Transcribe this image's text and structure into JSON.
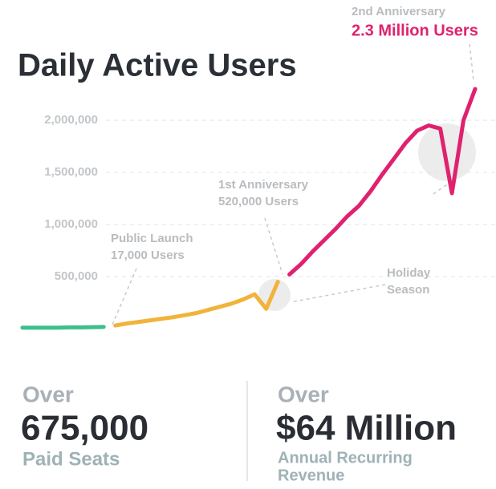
{
  "chart_data": {
    "type": "line",
    "title": "Daily Active Users",
    "categories": [
      null,
      null,
      null,
      null,
      null,
      null,
      null,
      null,
      null,
      null,
      null,
      null,
      null,
      null,
      null,
      null,
      null,
      null,
      null,
      null,
      null,
      null,
      null,
      null,
      null,
      null,
      null,
      null,
      null,
      null,
      null,
      null,
      null,
      null,
      null,
      null,
      null,
      null,
      null,
      null
    ],
    "series": [
      {
        "color": "#3dbf8d",
        "values": [
          10000,
          10000,
          10000,
          10000,
          12000,
          12000,
          15000,
          17000,
          null,
          null,
          null,
          null,
          null,
          null,
          null,
          null,
          null,
          null,
          null,
          null,
          null,
          null,
          null,
          null,
          null,
          null,
          null,
          null,
          null,
          null,
          null,
          null,
          null,
          null,
          null,
          null,
          null,
          null,
          null,
          null
        ]
      },
      {
        "color": "#f1b33b",
        "values": [
          null,
          null,
          null,
          null,
          null,
          null,
          null,
          null,
          30000,
          50000,
          65000,
          80000,
          95000,
          110000,
          130000,
          150000,
          180000,
          210000,
          240000,
          280000,
          330000,
          190000,
          450000,
          null,
          null,
          null,
          null,
          null,
          null,
          null,
          null,
          null,
          null,
          null,
          null,
          null,
          null,
          null,
          null,
          null
        ]
      },
      {
        "color": "#e0226e",
        "values": [
          null,
          null,
          null,
          null,
          null,
          null,
          null,
          null,
          null,
          null,
          null,
          null,
          null,
          null,
          null,
          null,
          null,
          null,
          null,
          null,
          null,
          null,
          null,
          520000,
          620000,
          740000,
          850000,
          960000,
          1080000,
          1180000,
          1320000,
          1480000,
          1630000,
          1780000,
          1900000,
          1950000,
          1920000,
          1300000,
          2000000,
          2300000
        ]
      }
    ],
    "ylim": [
      0,
      2400000
    ],
    "yticks": [
      {
        "value": 500000,
        "label": "500,000"
      },
      {
        "value": 1000000,
        "label": "1,000,000"
      },
      {
        "value": 1500000,
        "label": "1,500,000"
      },
      {
        "value": 2000000,
        "label": "2,000,000"
      }
    ],
    "grid": true,
    "annotations": [
      {
        "lines": [
          "Public Launch",
          "17,000 Users"
        ]
      },
      {
        "lines": [
          "1st Anniversary",
          "520,000 Users"
        ]
      },
      {
        "lines": [
          "Holiday",
          "Season"
        ]
      },
      {
        "lines": [
          "2nd Anniversary",
          "2.3 Million Users"
        ]
      }
    ]
  },
  "stats": [
    {
      "prefix": "Over",
      "value": "675,000",
      "label": [
        "Paid Seats"
      ]
    },
    {
      "prefix": "Over",
      "value": "$64 Million",
      "label": [
        "Annual Recurring",
        "Revenue"
      ]
    }
  ]
}
